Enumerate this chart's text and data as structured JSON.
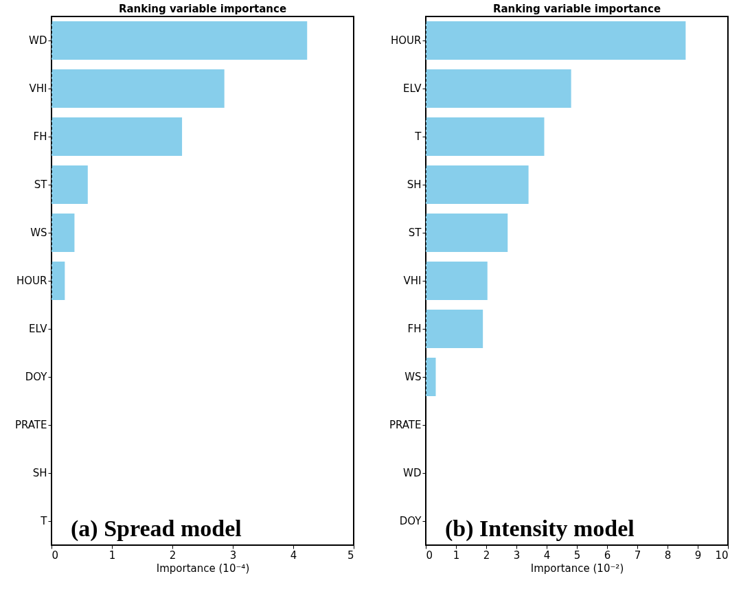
{
  "chart_data": [
    {
      "type": "bar",
      "orientation": "horizontal",
      "title": "Ranking variable importance",
      "xlabel": "Importance (10⁻⁴)",
      "categories": [
        "WD",
        "VHI",
        "FH",
        "ST",
        "WS",
        "HOUR",
        "ELV",
        "DOY",
        "PRATE",
        "SH",
        "T"
      ],
      "values": [
        4.23,
        2.86,
        2.16,
        0.6,
        0.38,
        0.22,
        0,
        0,
        0,
        0,
        0
      ],
      "color": "#87ceeb",
      "xlim": [
        0,
        5
      ],
      "xticks": [
        0,
        1,
        2,
        3,
        4,
        5
      ],
      "grid": false,
      "ref_lines": [
        {
          "axis": "x",
          "value": 0,
          "line_style": "dashed",
          "color": "#000000"
        }
      ],
      "annotations": [
        "(a) Spread model"
      ]
    },
    {
      "type": "bar",
      "orientation": "horizontal",
      "title": "Ranking variable importance",
      "xlabel": "Importance (10⁻²)",
      "categories": [
        "HOUR",
        "ELV",
        "T",
        "SH",
        "ST",
        "VHI",
        "FH",
        "WS",
        "PRATE",
        "WD",
        "DOY"
      ],
      "values": [
        8.6,
        4.81,
        3.92,
        3.4,
        2.71,
        2.04,
        1.89,
        0.33,
        0,
        0,
        0
      ],
      "color": "#87ceeb",
      "xlim": [
        0,
        10
      ],
      "xticks": [
        0,
        1,
        2,
        3,
        4,
        5,
        6,
        7,
        8,
        9,
        10
      ],
      "grid": false,
      "ref_lines": [
        {
          "axis": "x",
          "value": 0,
          "line_style": "dashed",
          "color": "#000000"
        }
      ],
      "annotations": [
        "(b) Intensity model"
      ]
    }
  ]
}
